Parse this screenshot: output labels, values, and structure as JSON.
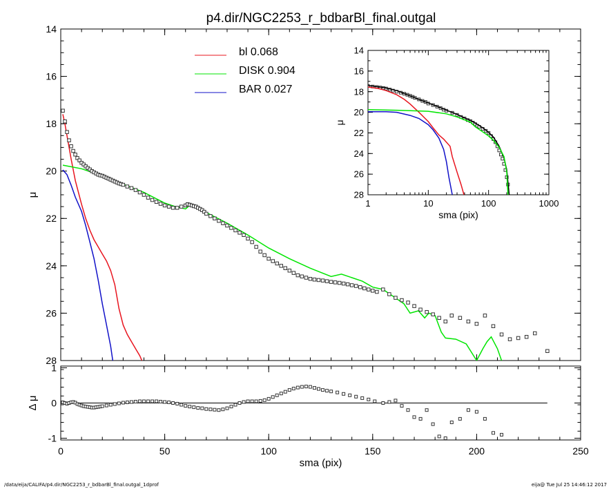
{
  "chart_data": [
    {
      "name": "main-profile",
      "type": "scatter",
      "title": "p4.dir/NGC2253_r_bdbarBl_final.outgal",
      "xlabel": "sma (pix)",
      "ylabel": "μ",
      "xlim": [
        0,
        250
      ],
      "ylim": [
        28,
        14
      ],
      "y_inverted": true,
      "xticks": [
        0,
        50,
        100,
        150,
        200,
        250
      ],
      "yticks": [
        14,
        16,
        18,
        20,
        22,
        24,
        26,
        28
      ],
      "legend_placement": "top-center",
      "legend": [
        {
          "name": "bl",
          "value": "0.068",
          "color": "#e8141e"
        },
        {
          "name": "DISK",
          "value": "0.904",
          "color": "#00e600"
        },
        {
          "name": "BAR",
          "value": "0.027",
          "color": "#1010c8"
        }
      ],
      "series": [
        {
          "name": "bl",
          "kind": "line",
          "color": "#e8141e",
          "x": [
            1,
            2,
            3,
            5,
            7,
            10,
            12,
            14,
            16,
            18,
            20,
            22,
            24,
            26,
            27,
            28,
            30,
            32,
            34,
            36,
            38,
            39
          ],
          "y": [
            17.6,
            18.0,
            18.5,
            19.5,
            20.4,
            21.4,
            22.0,
            22.5,
            22.9,
            23.2,
            23.5,
            23.8,
            24.2,
            24.8,
            25.3,
            25.8,
            26.5,
            26.9,
            27.2,
            27.5,
            27.8,
            28.0
          ]
        },
        {
          "name": "DISK",
          "kind": "line",
          "color": "#00e600",
          "x": [
            1,
            10,
            20,
            25,
            30,
            40,
            50,
            55,
            58,
            60,
            62,
            65,
            70,
            80,
            90,
            100,
            110,
            120,
            130,
            135,
            140,
            145,
            150,
            155,
            160,
            165,
            168,
            172,
            175,
            177,
            180,
            183,
            185,
            190,
            195,
            200,
            203,
            205,
            207,
            210,
            212
          ],
          "y": [
            19.75,
            19.9,
            20.2,
            20.4,
            20.55,
            20.9,
            21.35,
            21.5,
            21.55,
            21.6,
            21.45,
            21.55,
            21.75,
            22.2,
            22.7,
            23.25,
            23.7,
            24.1,
            24.45,
            24.35,
            24.5,
            24.65,
            24.9,
            25.0,
            25.3,
            25.6,
            26.0,
            25.9,
            26.2,
            26.0,
            26.1,
            26.8,
            27.05,
            27.1,
            27.3,
            28.0,
            27.5,
            27.2,
            27.0,
            27.5,
            28.0
          ]
        },
        {
          "name": "BAR",
          "kind": "line",
          "color": "#1010c8",
          "x": [
            1,
            3,
            5,
            7,
            10,
            12,
            14,
            16,
            18,
            20,
            22,
            24,
            25
          ],
          "y": [
            19.95,
            20.15,
            20.6,
            21.1,
            21.7,
            22.3,
            23.0,
            23.7,
            24.6,
            25.6,
            26.5,
            27.4,
            28.0
          ]
        },
        {
          "name": "data",
          "kind": "points",
          "color": "#333333",
          "x": [
            1,
            2,
            3,
            4,
            5,
            6,
            7,
            8,
            9,
            10,
            11,
            12,
            13,
            14,
            15,
            16,
            17,
            18,
            19,
            20,
            21,
            22,
            23,
            24,
            25,
            26,
            27,
            28,
            29,
            30,
            32,
            34,
            36,
            38,
            40,
            42,
            44,
            46,
            48,
            50,
            52,
            54,
            56,
            58,
            60,
            61,
            62,
            63,
            64,
            65,
            66,
            67,
            68,
            69,
            70,
            72,
            74,
            76,
            78,
            80,
            82,
            84,
            86,
            88,
            90,
            92,
            94,
            96,
            98,
            100,
            102,
            104,
            106,
            108,
            110,
            112,
            114,
            116,
            118,
            120,
            122,
            124,
            126,
            128,
            130,
            132,
            134,
            136,
            138,
            140,
            142,
            144,
            146,
            148,
            150,
            152,
            155,
            158,
            161,
            164,
            167,
            170,
            173,
            176,
            179,
            182,
            185,
            188,
            192,
            196,
            200,
            204,
            208,
            212,
            216,
            220,
            224,
            228,
            234
          ],
          "y": [
            17.45,
            17.9,
            18.35,
            18.7,
            18.95,
            19.15,
            19.3,
            19.45,
            19.55,
            19.65,
            19.72,
            19.8,
            19.87,
            19.93,
            20.0,
            20.05,
            20.1,
            20.15,
            20.18,
            20.2,
            20.24,
            20.28,
            20.32,
            20.36,
            20.4,
            20.44,
            20.48,
            20.52,
            20.55,
            20.58,
            20.65,
            20.72,
            20.8,
            20.9,
            21.0,
            21.12,
            21.22,
            21.3,
            21.38,
            21.45,
            21.5,
            21.55,
            21.55,
            21.5,
            21.45,
            21.4,
            21.42,
            21.45,
            21.48,
            21.5,
            21.55,
            21.6,
            21.65,
            21.72,
            21.8,
            21.9,
            22.0,
            22.1,
            22.2,
            22.3,
            22.4,
            22.5,
            22.6,
            22.7,
            22.85,
            23.0,
            23.2,
            23.4,
            23.55,
            23.7,
            23.8,
            23.9,
            24.0,
            24.1,
            24.2,
            24.3,
            24.4,
            24.45,
            24.5,
            24.55,
            24.58,
            24.6,
            24.62,
            24.65,
            24.68,
            24.7,
            24.72,
            24.75,
            24.78,
            24.82,
            24.85,
            24.9,
            24.95,
            25.0,
            25.05,
            25.1,
            25.0,
            25.2,
            25.35,
            25.45,
            25.55,
            25.7,
            25.85,
            25.95,
            26.05,
            26.2,
            26.35,
            26.1,
            26.2,
            26.35,
            26.45,
            26.1,
            26.55,
            26.9,
            27.1,
            27.05,
            27.0,
            26.85,
            27.6
          ]
        }
      ]
    },
    {
      "name": "residuals",
      "type": "scatter",
      "xlabel": "sma (pix)",
      "ylabel": "Δ μ",
      "xlim": [
        0,
        250
      ],
      "ylim": [
        -1.05,
        1.05
      ],
      "xticks": [
        0,
        50,
        100,
        150,
        200,
        250
      ],
      "yticks": [
        -1,
        0,
        1
      ],
      "zero_line": {
        "x": [
          0,
          234
        ],
        "y": 0
      },
      "series": [
        {
          "name": "residual",
          "kind": "points",
          "color": "#333333",
          "x": [
            1,
            2,
            3,
            4,
            5,
            6,
            7,
            8,
            9,
            10,
            11,
            12,
            13,
            14,
            15,
            16,
            17,
            18,
            19,
            20,
            22,
            24,
            26,
            28,
            30,
            32,
            34,
            36,
            38,
            40,
            42,
            44,
            46,
            48,
            50,
            52,
            54,
            56,
            58,
            60,
            62,
            64,
            66,
            68,
            70,
            72,
            74,
            76,
            78,
            80,
            82,
            84,
            86,
            88,
            90,
            92,
            94,
            96,
            98,
            100,
            102,
            104,
            106,
            108,
            110,
            112,
            114,
            116,
            118,
            120,
            122,
            124,
            126,
            128,
            130,
            133,
            136,
            139,
            142,
            145,
            148,
            151,
            155,
            158,
            161,
            164,
            167,
            170,
            173,
            176,
            179,
            182,
            185,
            188,
            192,
            196,
            200,
            204,
            208,
            212
          ],
          "y": [
            0.02,
            0.0,
            -0.02,
            0.0,
            0.02,
            0.03,
            0.01,
            -0.03,
            -0.05,
            -0.07,
            -0.09,
            -0.1,
            -0.11,
            -0.12,
            -0.13,
            -0.13,
            -0.12,
            -0.11,
            -0.1,
            -0.09,
            -0.07,
            -0.05,
            -0.03,
            -0.01,
            0.01,
            0.02,
            0.03,
            0.04,
            0.05,
            0.05,
            0.05,
            0.05,
            0.05,
            0.04,
            0.03,
            0.02,
            0.0,
            -0.02,
            -0.05,
            -0.08,
            -0.1,
            -0.12,
            -0.14,
            -0.15,
            -0.17,
            -0.18,
            -0.19,
            -0.2,
            -0.18,
            -0.15,
            -0.1,
            -0.05,
            0.0,
            0.03,
            0.05,
            0.05,
            0.05,
            0.06,
            0.08,
            0.12,
            0.17,
            0.22,
            0.27,
            0.32,
            0.37,
            0.41,
            0.44,
            0.46,
            0.47,
            0.46,
            0.43,
            0.4,
            0.37,
            0.35,
            0.33,
            0.3,
            0.26,
            0.22,
            0.18,
            0.14,
            0.1,
            0.05,
            0.0,
            0.03,
            0.07,
            -0.08,
            -0.2,
            -0.4,
            -0.45,
            -0.2,
            -0.6,
            -0.95,
            -1.0,
            -0.55,
            -0.45,
            -0.2,
            -0.25,
            -0.45,
            -0.85,
            -0.9
          ]
        }
      ]
    },
    {
      "name": "inset-log",
      "type": "scatter",
      "xlabel": "sma (pix)",
      "ylabel": "μ",
      "xscale": "log",
      "xlim": [
        1,
        1000
      ],
      "ylim": [
        28,
        14
      ],
      "y_inverted": true,
      "xticks": [
        1,
        10,
        100,
        1000
      ],
      "xtick_labels": [
        "1",
        "10",
        "100",
        "1000"
      ],
      "yticks": [
        14,
        16,
        18,
        20,
        22,
        24,
        26,
        28
      ],
      "series": [
        {
          "name": "data",
          "kind": "points",
          "color": "#333333",
          "x": [
            1,
            1.2,
            1.4,
            1.6,
            1.8,
            2,
            2.3,
            2.6,
            3,
            3.5,
            4,
            4.5,
            5,
            5.5,
            6,
            7,
            8,
            9,
            10,
            12,
            14,
            16,
            18,
            20,
            25,
            30,
            35,
            40,
            45,
            50,
            55,
            60,
            65,
            70,
            80,
            90,
            100,
            110,
            120,
            130,
            140,
            150,
            160,
            170,
            180,
            190,
            200,
            210
          ],
          "y": [
            17.45,
            17.5,
            17.55,
            17.6,
            17.65,
            17.7,
            17.8,
            17.9,
            18.0,
            18.1,
            18.2,
            18.3,
            18.4,
            18.5,
            18.6,
            18.75,
            18.9,
            19.0,
            19.15,
            19.3,
            19.45,
            19.6,
            19.75,
            19.85,
            20.05,
            20.25,
            20.45,
            20.6,
            20.75,
            20.85,
            21.0,
            21.15,
            21.3,
            21.4,
            21.6,
            21.8,
            22.0,
            22.3,
            22.6,
            22.9,
            23.3,
            23.7,
            24.1,
            24.5,
            25.0,
            25.6,
            26.3,
            27.0
          ]
        },
        {
          "name": "model",
          "kind": "line",
          "color": "#000000",
          "x": [
            1,
            2,
            3,
            5,
            7,
            10,
            15,
            20,
            30,
            40,
            50,
            60,
            80,
            100,
            120,
            150,
            180,
            200,
            220
          ],
          "y": [
            17.4,
            17.65,
            17.9,
            18.4,
            18.75,
            19.1,
            19.5,
            19.8,
            20.2,
            20.55,
            20.8,
            21.05,
            21.5,
            21.95,
            22.4,
            23.3,
            24.4,
            25.6,
            28.0
          ]
        },
        {
          "name": "bl",
          "kind": "line",
          "color": "#e8141e",
          "x": [
            1,
            1.5,
            2,
            3,
            4,
            5,
            7,
            10,
            12,
            15,
            18,
            20,
            23,
            25,
            30,
            35,
            39
          ],
          "y": [
            17.55,
            17.7,
            17.9,
            18.3,
            18.75,
            19.2,
            20.0,
            20.9,
            21.5,
            22.2,
            22.6,
            22.9,
            23.3,
            24.3,
            25.8,
            27.0,
            28.0
          ]
        },
        {
          "name": "DISK",
          "kind": "line",
          "color": "#00e600",
          "x": [
            1,
            3,
            5,
            10,
            20,
            30,
            50,
            60,
            80,
            100,
            120,
            150,
            180,
            200,
            210
          ],
          "y": [
            19.75,
            19.8,
            19.85,
            19.9,
            20.15,
            20.45,
            20.95,
            21.4,
            21.9,
            22.3,
            22.7,
            23.4,
            24.3,
            25.8,
            28.0
          ]
        },
        {
          "name": "BAR",
          "kind": "line",
          "color": "#1010c8",
          "x": [
            1,
            2,
            3,
            5,
            7,
            10,
            12,
            15,
            18,
            20,
            22,
            25
          ],
          "y": [
            19.95,
            19.95,
            20.0,
            20.3,
            20.6,
            21.2,
            21.7,
            22.5,
            23.6,
            24.8,
            26.3,
            28.0
          ]
        }
      ]
    }
  ],
  "footer": {
    "path": "/data/eija/CALIFA/p4.dir/NGC2253_r_bdbarBl_final.outgal_1dprof",
    "stamp": "eija@  Tue Jul 25 14:46:12 2017"
  }
}
